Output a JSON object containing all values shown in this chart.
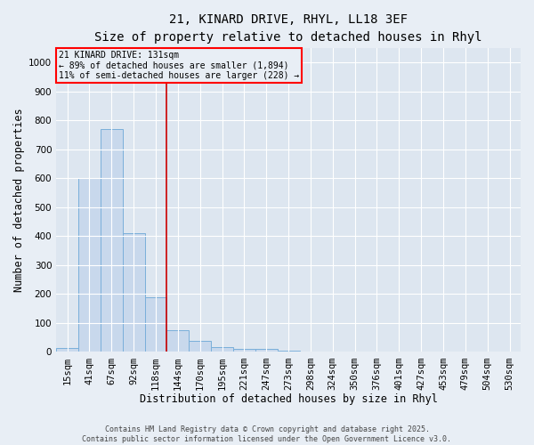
{
  "title_line1": "21, KINARD DRIVE, RHYL, LL18 3EF",
  "title_line2": "Size of property relative to detached houses in Rhyl",
  "xlabel": "Distribution of detached houses by size in Rhyl",
  "ylabel": "Number of detached properties",
  "categories": [
    "15sqm",
    "41sqm",
    "67sqm",
    "92sqm",
    "118sqm",
    "144sqm",
    "170sqm",
    "195sqm",
    "221sqm",
    "247sqm",
    "273sqm",
    "298sqm",
    "324sqm",
    "350sqm",
    "376sqm",
    "401sqm",
    "427sqm",
    "453sqm",
    "479sqm",
    "504sqm",
    "530sqm"
  ],
  "values": [
    15,
    600,
    770,
    410,
    190,
    75,
    38,
    17,
    12,
    12,
    5,
    0,
    0,
    0,
    0,
    0,
    0,
    0,
    0,
    0,
    0
  ],
  "bar_color": "#c8d8ec",
  "bar_edge_color": "#7aafda",
  "ylim": [
    0,
    1050
  ],
  "yticks": [
    0,
    100,
    200,
    300,
    400,
    500,
    600,
    700,
    800,
    900,
    1000
  ],
  "annotation_line1": "21 KINARD DRIVE: 131sqm",
  "annotation_line2": "← 89% of detached houses are smaller (1,894)",
  "annotation_line3": "11% of semi-detached houses are larger (228) →",
  "vline_color": "#cc0000",
  "footer_line1": "Contains HM Land Registry data © Crown copyright and database right 2025.",
  "footer_line2": "Contains public sector information licensed under the Open Government Licence v3.0.",
  "background_color": "#e8eef5",
  "plot_bg_color": "#dde6f0",
  "grid_color": "#ffffff",
  "title_fontsize": 10,
  "subtitle_fontsize": 9,
  "tick_fontsize": 7.5,
  "label_fontsize": 8.5
}
